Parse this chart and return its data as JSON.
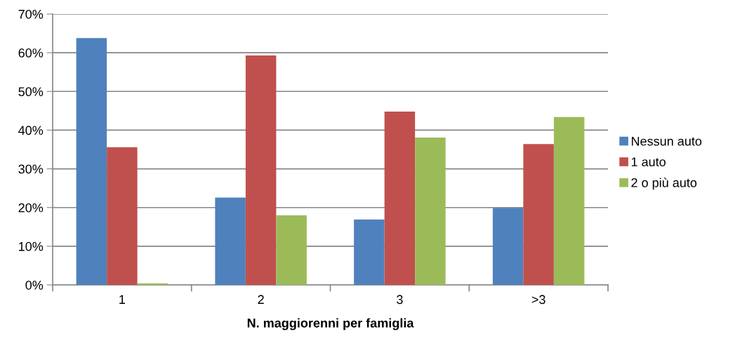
{
  "chart_data": {
    "type": "bar",
    "xlabel": "N. maggiorenni per famiglia",
    "categories": [
      "1",
      "2",
      "3",
      ">3"
    ],
    "series": [
      {
        "name": "Nessun auto",
        "color": "#4f81bd",
        "values": [
          63.8,
          22.6,
          16.9,
          19.9
        ]
      },
      {
        "name": "1 auto",
        "color": "#c0504d",
        "values": [
          35.6,
          59.3,
          44.8,
          36.4
        ]
      },
      {
        "name": "2 o più auto",
        "color": "#9bbb59",
        "values": [
          0.4,
          18.0,
          38.1,
          43.4
        ]
      }
    ],
    "ylim": [
      0,
      70
    ],
    "yticks": [
      {
        "value": 0,
        "label": "0%"
      },
      {
        "value": 10,
        "label": "10%"
      },
      {
        "value": 20,
        "label": "20%"
      },
      {
        "value": 30,
        "label": "30%"
      },
      {
        "value": 40,
        "label": "40%"
      },
      {
        "value": 50,
        "label": "50%"
      },
      {
        "value": 60,
        "label": "60%"
      },
      {
        "value": 70,
        "label": "70%"
      }
    ],
    "grid": "y",
    "legend": "right"
  }
}
